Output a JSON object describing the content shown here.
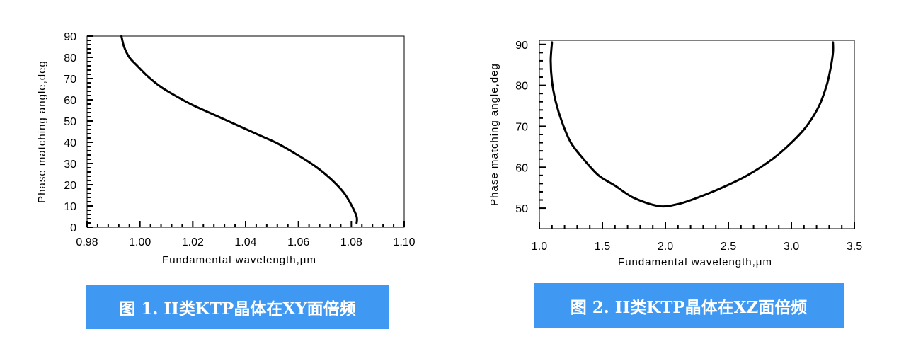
{
  "captions": [
    "图 1. II类KTP晶体在XY面倍频",
    "图 2. II类KTP晶体在XZ面倍频"
  ],
  "chart_data": [
    {
      "type": "line",
      "title": "",
      "xlabel": "Fundamental wavelength,μm",
      "ylabel": "Phase matching angle,deg",
      "xlim": [
        0.98,
        1.1
      ],
      "ylim": [
        0,
        90
      ],
      "xticks": [
        "0.98",
        "1.00",
        "1.02",
        "1.04",
        "1.06",
        "1.08",
        "1.10"
      ],
      "xtick_values": [
        0.98,
        1.0,
        1.02,
        1.04,
        1.06,
        1.08,
        1.1
      ],
      "yticks": [
        "0",
        "10",
        "20",
        "30",
        "40",
        "50",
        "60",
        "70",
        "80",
        "90"
      ],
      "ytick_values": [
        0,
        10,
        20,
        30,
        40,
        50,
        60,
        70,
        80,
        90
      ],
      "grid": false,
      "series": [
        {
          "x": [
            0.993,
            0.994,
            0.996,
            0.999,
            1.003,
            1.008,
            1.014,
            1.02,
            1.028,
            1.036,
            1.044,
            1.052,
            1.059,
            1.066,
            1.072,
            1.077,
            1.08,
            1.082,
            1.082
          ],
          "y": [
            90,
            85,
            80,
            76,
            71,
            66,
            61.5,
            57.5,
            53,
            48.5,
            44,
            39.5,
            34.5,
            29,
            23,
            16.5,
            10.5,
            5,
            2
          ]
        }
      ]
    },
    {
      "type": "line",
      "title": "",
      "xlabel": "Fundamental wavelength,μm",
      "ylabel": "Phase matching angle,deg",
      "xlim": [
        1.0,
        3.5
      ],
      "ylim": [
        45,
        91
      ],
      "xticks": [
        "1.0",
        "1.5",
        "2.0",
        "2.5",
        "3.0",
        "3.5"
      ],
      "xtick_values": [
        1.0,
        1.5,
        2.0,
        2.5,
        3.0,
        3.5
      ],
      "yticks": [
        "50",
        "60",
        "70",
        "80",
        "90"
      ],
      "ytick_values": [
        50,
        60,
        70,
        80,
        90
      ],
      "grid": false,
      "series": [
        {
          "x": [
            1.1,
            1.09,
            1.1,
            1.13,
            1.18,
            1.25,
            1.35,
            1.47,
            1.6,
            1.75,
            1.95,
            2.1,
            2.25,
            2.45,
            2.65,
            2.85,
            3.0,
            3.12,
            3.22,
            3.28,
            3.31,
            3.33,
            3.33
          ],
          "y": [
            90.5,
            86,
            81,
            76,
            71,
            66,
            62,
            58,
            55.5,
            52.5,
            50.5,
            51,
            52.5,
            55,
            58,
            62,
            66,
            70,
            75,
            80,
            84,
            88,
            90.5
          ]
        }
      ]
    }
  ]
}
